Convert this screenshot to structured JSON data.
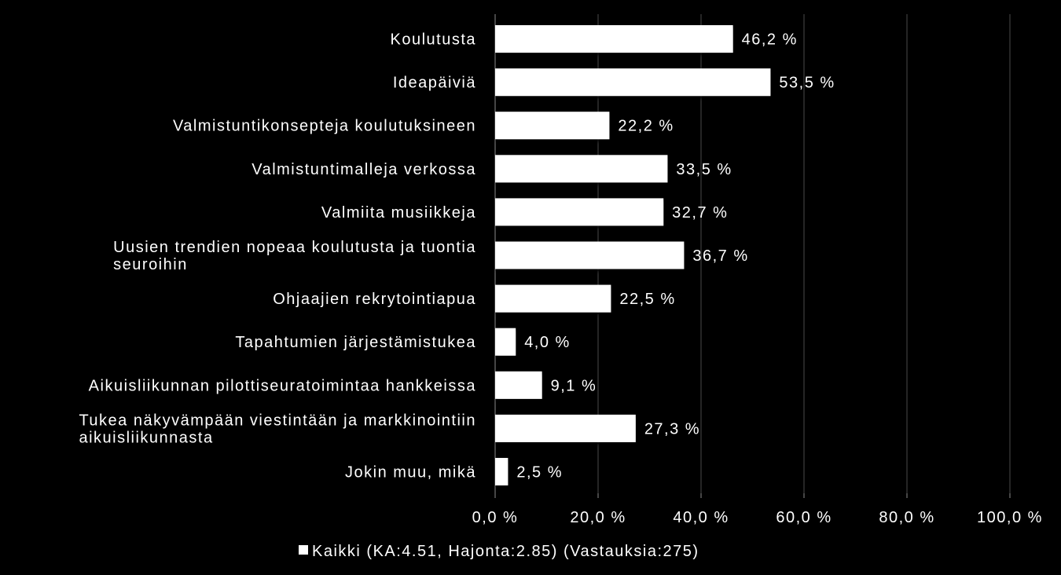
{
  "chart_data": {
    "type": "bar",
    "orientation": "horizontal",
    "categories": [
      [
        "Koulutusta"
      ],
      [
        "Ideapäiviä"
      ],
      [
        "Valmistuntikonsepteja koulutuksineen"
      ],
      [
        "Valmistuntimalleja verkossa"
      ],
      [
        "Valmiita musiikkeja"
      ],
      [
        "Uusien trendien nopeaa koulutusta ja tuontia",
        "seuroihin"
      ],
      [
        "Ohjaajien rekrytointiapua"
      ],
      [
        "Tapahtumien järjestämistukea"
      ],
      [
        "Aikuisliikunnan pilottiseuratoimintaa hankkeissa"
      ],
      [
        "Tukea näkyvämpään viestintään ja markkinointiin",
        "aikuisliikunnasta"
      ],
      [
        "Jokin muu, mikä"
      ]
    ],
    "series": [
      {
        "name": "Kaikki (KA:4.51, Hajonta:2.85) (Vastauksia:275)",
        "values": [
          46.2,
          53.5,
          22.2,
          33.5,
          32.7,
          36.7,
          22.5,
          4.0,
          9.1,
          27.3,
          2.5
        ],
        "value_labels": [
          "46,2 %",
          "53,5 %",
          "22,2 %",
          "33,5 %",
          "32,7 %",
          "36,7 %",
          "22,5 %",
          "4,0 %",
          "9,1 %",
          "27,3 %",
          "2,5 %"
        ]
      }
    ],
    "xlim": [
      0,
      100
    ],
    "x_ticks": [
      0,
      20,
      40,
      60,
      80,
      100
    ],
    "x_tick_labels": [
      "0,0 %",
      "20,0 %",
      "40,0 %",
      "60,0 %",
      "80,0 %",
      "100,0 %"
    ],
    "title": "",
    "xlabel": "",
    "ylabel": "",
    "grid": true,
    "legend_position": "bottom",
    "colors": {
      "background": "#000000",
      "bar": "#ffffff",
      "text": "#ffffff",
      "grid": "#4a4a4a",
      "axis": "#8c8c8c"
    }
  }
}
